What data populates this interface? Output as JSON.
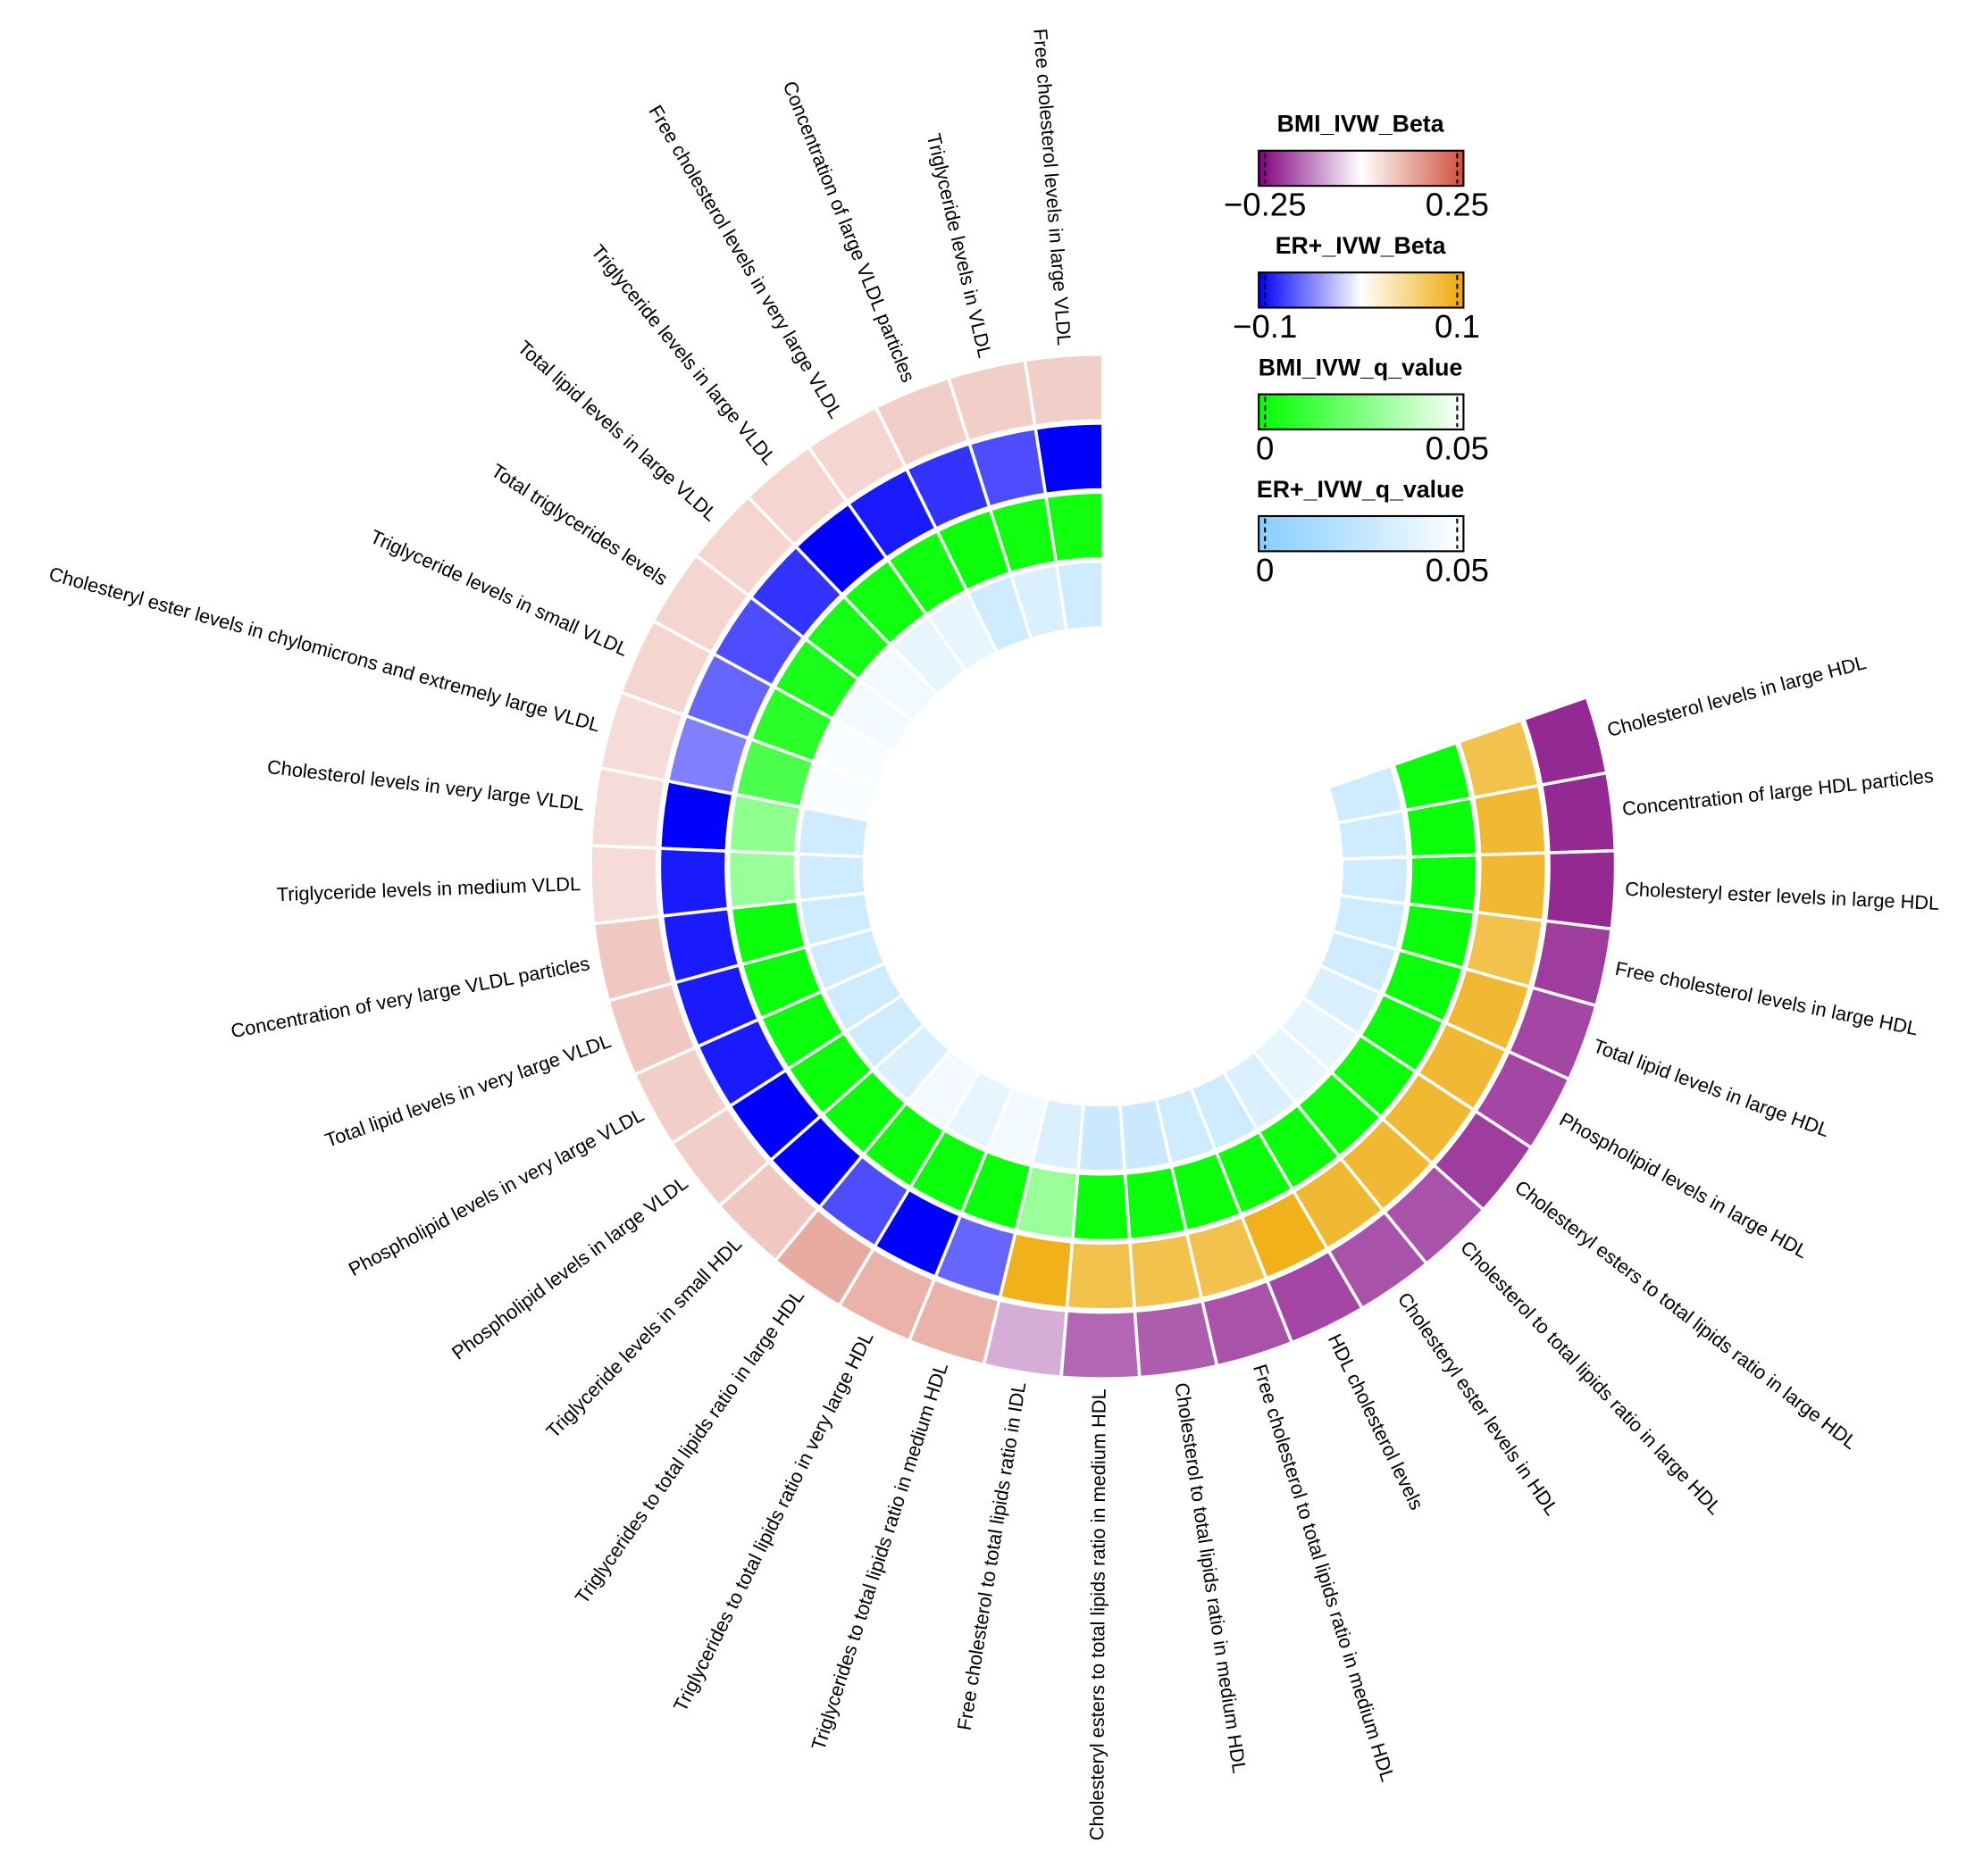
{
  "chart_data": {
    "type": "circular_heatmap",
    "categories": [
      "Free cholesterol levels in large VLDL",
      "Triglyceride levels in VLDL",
      "Concentration of large VLDL particles",
      "Free cholesterol levels in very large VLDL",
      "Triglyceride levels in large VLDL",
      "Total lipid levels in large VLDL",
      "Total triglycerides levels",
      "Triglyceride levels in small VLDL",
      "Cholesteryl ester levels in chylomicrons and extremely large VLDL",
      "Cholesterol levels in very large VLDL",
      "Triglyceride levels in medium VLDL",
      "Concentration of very large VLDL particles",
      "Total lipid levels in very large VLDL",
      "Phospholipid levels in very large VLDL",
      "Phospholipid levels in large VLDL",
      "Triglyceride levels in small HDL",
      "Triglycerides to total lipids ratio in large HDL",
      "Triglycerides to total lipids ratio in very large HDL",
      "Triglycerides to total lipids ratio in medium HDL",
      "Free cholesterol to total lipids ratio in IDL",
      "Cholesteryl esters to total lipids ratio in medium HDL",
      "Cholesterol to total lipids ratio in medium HDL",
      "Free cholesterol to total lipids ratio in medium HDL",
      "HDL cholesterol levels",
      "Cholesteryl ester levels in HDL",
      "Cholesterol to total lipids ratio in large HDL",
      "Cholesteryl esters to total lipids ratio in large HDL",
      "Phospholipid levels in large HDL",
      "Total lipid levels in large HDL",
      "Free cholesterol levels in large HDL",
      "Cholesteryl ester levels in large HDL",
      "Concentration of large HDL particles",
      "Cholesterol levels in large HDL"
    ],
    "series": [
      {
        "name": "BMI_IVW_Beta",
        "colors": [
          "#800080",
          "#ffffff",
          "#d0503c"
        ],
        "lim": [
          -0.25,
          0.25
        ],
        "ticks": [
          {
            "value": -0.25,
            "label": "−0.25"
          },
          0.25
        ],
        "values": [
          0.07,
          0.07,
          0.07,
          0.06,
          0.06,
          0.06,
          0.06,
          0.06,
          0.05,
          0.05,
          0.05,
          0.08,
          0.08,
          0.07,
          0.07,
          0.08,
          0.12,
          0.11,
          0.11,
          -0.08,
          -0.15,
          -0.16,
          -0.17,
          -0.18,
          -0.17,
          -0.17,
          -0.19,
          -0.18,
          -0.18,
          -0.19,
          -0.21,
          -0.21,
          -0.21
        ]
      },
      {
        "name": "ER+_IVW_Beta",
        "colors": [
          "#0000ff",
          "#ffffff",
          "#eea800"
        ],
        "lim": [
          -0.1,
          0.1
        ],
        "ticks": [
          {
            "value": -0.1,
            "label": "−0.1"
          },
          0.1
        ],
        "values": [
          -0.1,
          -0.07,
          -0.08,
          -0.09,
          -0.1,
          -0.08,
          -0.07,
          -0.06,
          -0.05,
          -0.1,
          -0.09,
          -0.09,
          -0.09,
          -0.09,
          -0.1,
          -0.1,
          -0.07,
          -0.1,
          -0.06,
          0.09,
          0.07,
          0.07,
          0.07,
          0.09,
          0.08,
          0.08,
          0.08,
          0.08,
          0.08,
          0.07,
          0.08,
          0.08,
          0.07
        ]
      },
      {
        "name": "BMI_IVW_q_value",
        "colors": [
          "#00ff00",
          "#ffffff"
        ],
        "lim": [
          0,
          0.05
        ],
        "ticks": [
          0,
          0.05
        ],
        "values": [
          0.003,
          0.003,
          0.002,
          0.003,
          0.003,
          0.004,
          0.005,
          0.008,
          0.015,
          0.028,
          0.03,
          0.002,
          0.002,
          0.002,
          0.002,
          0.002,
          0.002,
          0.002,
          0.002,
          0.03,
          0.002,
          0.002,
          0.002,
          0.002,
          0.002,
          0.002,
          0.002,
          0.002,
          0.002,
          0.002,
          0.002,
          0.002,
          0.002
        ]
      },
      {
        "name": "ER+_IVW_q_value",
        "colors": [
          "#87ceff",
          "#ffffff"
        ],
        "lim": [
          0,
          0.05
        ],
        "ticks": [
          0,
          0.05
        ],
        "values": [
          0.03,
          0.035,
          0.03,
          0.04,
          0.04,
          0.045,
          0.045,
          0.048,
          0.048,
          0.03,
          0.03,
          0.03,
          0.03,
          0.03,
          0.03,
          0.035,
          0.045,
          0.04,
          0.045,
          0.035,
          0.028,
          0.028,
          0.03,
          0.03,
          0.035,
          0.04,
          0.04,
          0.035,
          0.03,
          0.03,
          0.03,
          0.03,
          0.03
        ]
      }
    ]
  }
}
